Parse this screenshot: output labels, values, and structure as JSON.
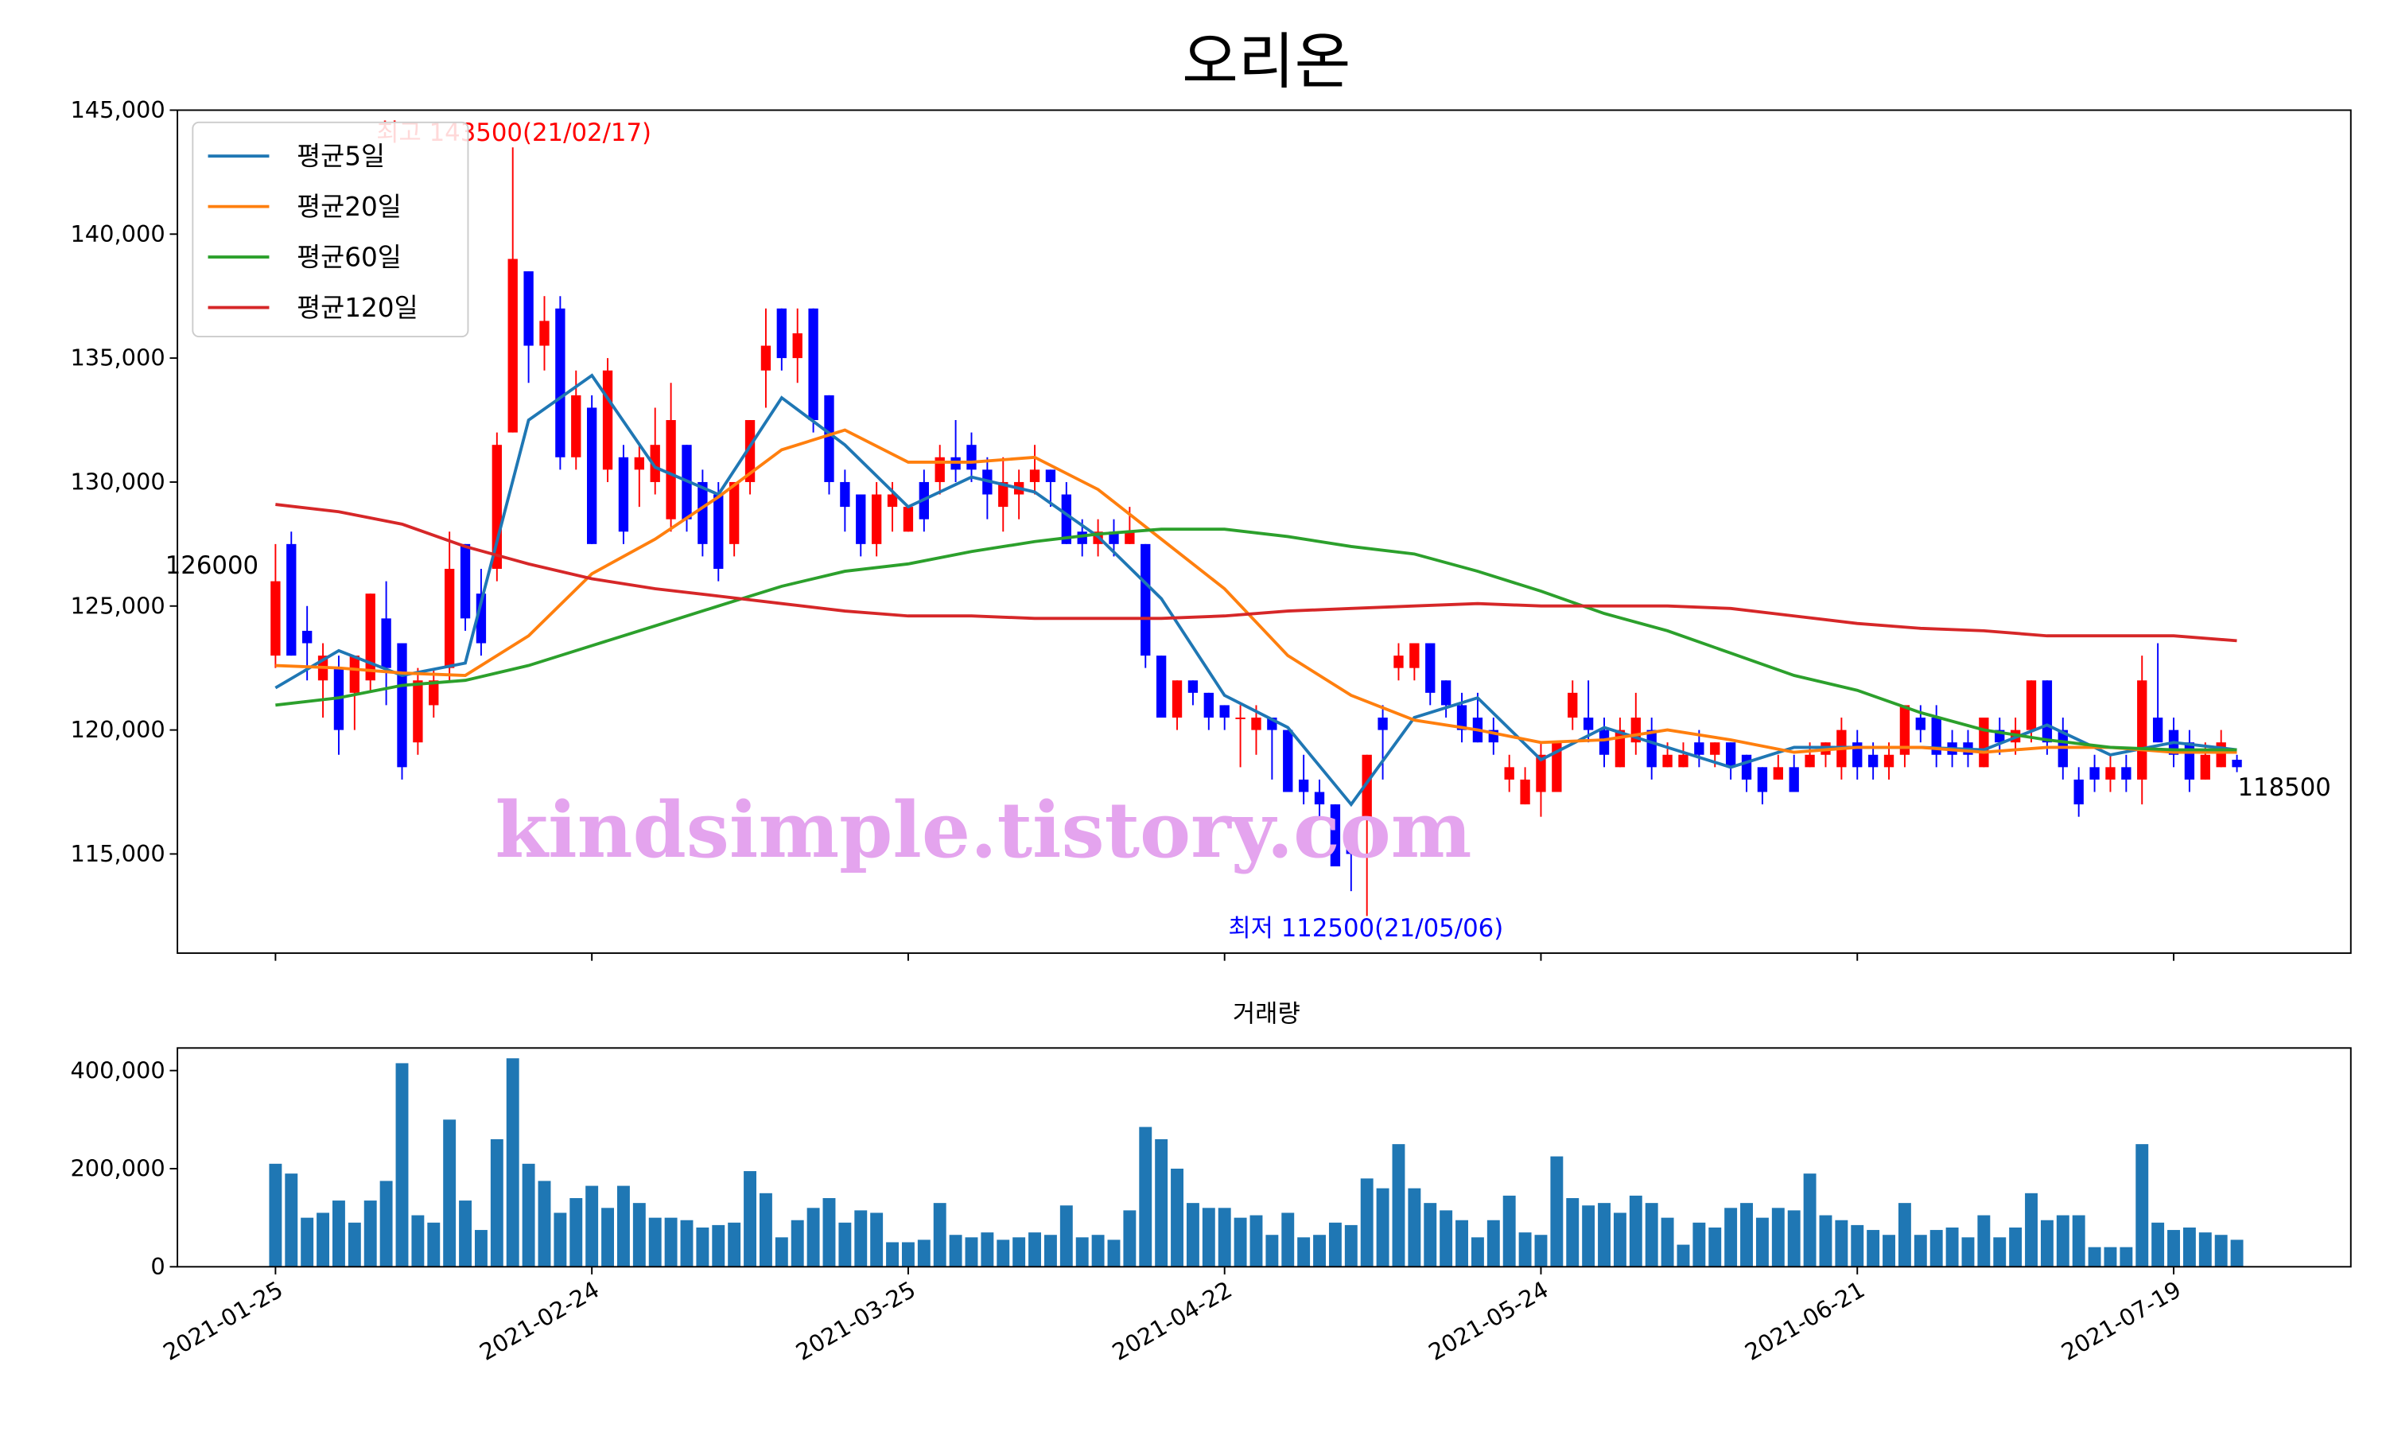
{
  "chart_data": [
    {
      "type": "candlestick",
      "title": "오리온",
      "up_color": "red",
      "down_color": "blue",
      "xlim": [
        -6.2,
        131.2
      ],
      "xticks": [
        0,
        20,
        40,
        60,
        80,
        100,
        120
      ],
      "ylim": [
        111000,
        145000
      ],
      "yticks": [
        {
          "value": 115000,
          "label": "115,000"
        },
        {
          "value": 120000,
          "label": "120,000"
        },
        {
          "value": 125000,
          "label": "125,000"
        },
        {
          "value": 130000,
          "label": "130,000"
        },
        {
          "value": 135000,
          "label": "135,000"
        },
        {
          "value": 140000,
          "label": "140,000"
        },
        {
          "value": 145000,
          "label": "145,000"
        }
      ],
      "open": [
        123000,
        127500,
        124000,
        122000,
        122500,
        121500,
        122000,
        124500,
        123500,
        119500,
        121000,
        122500,
        127500,
        125500,
        126500,
        132000,
        138500,
        135500,
        137000,
        131000,
        133000,
        130500,
        131000,
        130500,
        130000,
        128500,
        131500,
        130000,
        129500,
        127500,
        130000,
        134500,
        137000,
        135000,
        137000,
        133500,
        130000,
        129500,
        127500,
        129000,
        128000,
        130000,
        130000,
        131000,
        131500,
        130500,
        129000,
        129500,
        130000,
        130500,
        129500,
        128000,
        127500,
        128000,
        127500,
        127500,
        123000,
        120500,
        122000,
        121500,
        121000,
        120500,
        120000,
        120500,
        120000,
        118000,
        117500,
        117000,
        115500,
        116500,
        120500,
        122500,
        122500,
        123500,
        122000,
        121000,
        120500,
        120000,
        118000,
        117000,
        117500,
        117500,
        120500,
        120500,
        120000,
        118500,
        119500,
        120000,
        118500,
        118500,
        119500,
        119000,
        119500,
        119000,
        118500,
        118000,
        118500,
        118500,
        119000,
        118500,
        119500,
        119000,
        118500,
        119000,
        120500,
        120500,
        119500,
        119500,
        118500,
        120000,
        119500,
        120000,
        122000,
        120000,
        118000,
        118500,
        118000,
        118500,
        118000,
        120500,
        120000,
        119500,
        118000,
        118500,
        118800
      ],
      "high": [
        127500,
        128000,
        125000,
        123500,
        123000,
        123000,
        125500,
        126000,
        123500,
        122500,
        122500,
        128000,
        127500,
        126500,
        132000,
        143500,
        138500,
        137500,
        137500,
        134500,
        133500,
        135000,
        131500,
        131500,
        133000,
        134000,
        131500,
        130500,
        130000,
        130000,
        132500,
        137000,
        137000,
        137000,
        137000,
        133500,
        130500,
        129500,
        130000,
        130000,
        129000,
        130500,
        131500,
        132500,
        132000,
        131000,
        131000,
        130500,
        131500,
        130500,
        130000,
        128500,
        128500,
        128500,
        129000,
        127500,
        123000,
        122000,
        122000,
        121500,
        121000,
        121000,
        121000,
        120500,
        120000,
        119000,
        118000,
        117000,
        115500,
        119000,
        121000,
        123500,
        123500,
        123500,
        122000,
        121500,
        121500,
        120500,
        119000,
        118500,
        119500,
        119500,
        122000,
        122000,
        120500,
        120500,
        121500,
        120500,
        119500,
        119500,
        120000,
        119500,
        119500,
        119000,
        118500,
        119000,
        119000,
        119500,
        119500,
        120500,
        120000,
        119500,
        119500,
        121000,
        121000,
        121000,
        120000,
        120000,
        120500,
        120500,
        120500,
        122000,
        122000,
        120500,
        118500,
        119000,
        119000,
        119000,
        123000,
        123500,
        120500,
        120000,
        119500,
        120000,
        119000
      ],
      "low": [
        122500,
        123000,
        122000,
        120500,
        119000,
        120000,
        121500,
        121000,
        118000,
        119000,
        120500,
        122000,
        124000,
        123000,
        126000,
        132000,
        134000,
        134500,
        130500,
        130500,
        127500,
        130000,
        127500,
        129000,
        129500,
        128000,
        128000,
        127000,
        126000,
        127000,
        129500,
        133000,
        134500,
        134000,
        132000,
        129500,
        128000,
        127000,
        127000,
        128000,
        128000,
        128000,
        129500,
        130000,
        130000,
        128500,
        128000,
        128500,
        129500,
        129000,
        127500,
        127000,
        127000,
        127000,
        127500,
        122500,
        120500,
        120000,
        121000,
        120000,
        120000,
        118500,
        119000,
        118000,
        117500,
        117000,
        116500,
        114500,
        113500,
        112500,
        118000,
        122000,
        122000,
        121000,
        120500,
        119500,
        119500,
        119000,
        117500,
        117000,
        116500,
        117500,
        120000,
        119500,
        118500,
        118500,
        119000,
        118000,
        118500,
        118500,
        118500,
        118500,
        118000,
        117500,
        117000,
        118000,
        117500,
        118500,
        118500,
        118000,
        118000,
        118000,
        118000,
        118500,
        119500,
        118500,
        118500,
        118500,
        118500,
        119000,
        119000,
        119500,
        119000,
        118000,
        116500,
        117500,
        117500,
        117500,
        117000,
        119500,
        118500,
        117500,
        118000,
        118500,
        118300
      ],
      "close": [
        126000,
        123000,
        123500,
        123000,
        120000,
        123000,
        125500,
        122500,
        118500,
        122000,
        122000,
        126500,
        124500,
        123500,
        131500,
        139000,
        135500,
        136500,
        131000,
        133500,
        127500,
        134500,
        128000,
        131000,
        131500,
        132500,
        128500,
        127500,
        126500,
        130000,
        132500,
        135500,
        135000,
        136000,
        132500,
        130000,
        129000,
        127500,
        129500,
        129500,
        129000,
        128500,
        131000,
        130500,
        130500,
        129500,
        130000,
        130000,
        130500,
        130000,
        127500,
        127500,
        128000,
        127500,
        128000,
        123000,
        120500,
        122000,
        121500,
        120500,
        120500,
        120500,
        120500,
        120000,
        117500,
        117500,
        117000,
        114500,
        115000,
        119000,
        120000,
        123000,
        123500,
        121500,
        121000,
        120000,
        119500,
        119500,
        118500,
        118000,
        119000,
        119500,
        121500,
        120000,
        119000,
        120000,
        120500,
        118500,
        119000,
        119000,
        119000,
        119500,
        118500,
        118000,
        117500,
        118500,
        117500,
        119000,
        119500,
        120000,
        118500,
        118500,
        119000,
        121000,
        120000,
        119000,
        119000,
        119000,
        120500,
        119500,
        120000,
        122000,
        119500,
        118500,
        117000,
        118000,
        118500,
        118000,
        122000,
        119500,
        119000,
        118000,
        119000,
        119500,
        118500
      ],
      "series": [
        {
          "name": "평균5일",
          "color": "#1f77b4",
          "x": [
            0,
            4,
            8,
            12,
            16,
            20,
            24,
            28,
            32,
            36,
            40,
            44,
            48,
            52,
            56,
            60,
            64,
            68,
            72,
            76,
            80,
            84,
            88,
            92,
            96,
            100,
            104,
            108,
            112,
            116,
            120,
            124
          ],
          "values": [
            121700,
            123200,
            122200,
            122700,
            132500,
            134300,
            130600,
            129500,
            133400,
            131500,
            129000,
            130200,
            129600,
            127800,
            125300,
            121400,
            120100,
            117000,
            120500,
            121300,
            118800,
            120100,
            119300,
            118500,
            119300,
            119300,
            119300,
            119200,
            120200,
            119000,
            119500,
            119200
          ]
        },
        {
          "name": "평균20일",
          "color": "#ff7f0e",
          "x": [
            0,
            4,
            8,
            12,
            16,
            20,
            24,
            28,
            32,
            36,
            40,
            44,
            48,
            52,
            56,
            60,
            64,
            68,
            72,
            76,
            80,
            84,
            88,
            92,
            96,
            100,
            104,
            108,
            112,
            116,
            120,
            124
          ],
          "values": [
            122600,
            122500,
            122300,
            122200,
            123800,
            126300,
            127700,
            129400,
            131300,
            132100,
            130800,
            130800,
            131000,
            129700,
            127700,
            125700,
            123000,
            121400,
            120400,
            120000,
            119500,
            119600,
            120000,
            119600,
            119100,
            119300,
            119300,
            119100,
            119300,
            119300,
            119100,
            119100
          ]
        },
        {
          "name": "평균60일",
          "color": "#2ca02c",
          "x": [
            0,
            4,
            8,
            12,
            16,
            20,
            24,
            28,
            32,
            36,
            40,
            44,
            48,
            52,
            56,
            60,
            64,
            68,
            72,
            76,
            80,
            84,
            88,
            92,
            96,
            100,
            104,
            108,
            112,
            116,
            120,
            124
          ],
          "values": [
            121000,
            121300,
            121800,
            122000,
            122600,
            123400,
            124200,
            125000,
            125800,
            126400,
            126700,
            127200,
            127600,
            127900,
            128100,
            128100,
            127800,
            127400,
            127100,
            126400,
            125600,
            124700,
            124000,
            123100,
            122200,
            121600,
            120700,
            120000,
            119600,
            119300,
            119200,
            119200
          ]
        },
        {
          "name": "평균120일",
          "color": "#d62728",
          "x": [
            0,
            4,
            8,
            12,
            16,
            20,
            24,
            28,
            32,
            36,
            40,
            44,
            48,
            52,
            56,
            60,
            64,
            68,
            72,
            76,
            80,
            84,
            88,
            92,
            96,
            100,
            104,
            108,
            112,
            116,
            120,
            124
          ],
          "values": [
            129100,
            128800,
            128300,
            127400,
            126700,
            126100,
            125700,
            125400,
            125100,
            124800,
            124600,
            124600,
            124500,
            124500,
            124500,
            124600,
            124800,
            124900,
            125000,
            125100,
            125000,
            125000,
            125000,
            124900,
            124600,
            124300,
            124100,
            124000,
            123800,
            123800,
            123800,
            123600
          ]
        }
      ],
      "legend": "upper left",
      "annotations": [
        {
          "text": "최고 143500(21/02/17)",
          "color": "red"
        },
        {
          "text": "최저 112500(21/05/06)",
          "color": "blue"
        },
        {
          "text": "126000",
          "color": "#000000"
        },
        {
          "text": "118500",
          "color": "#000000"
        }
      ],
      "watermark": "kindsimple.tistory.com"
    },
    {
      "type": "bar",
      "title": "거래량",
      "color": "#1f77b4",
      "xlim": [
        -6.2,
        131.2
      ],
      "ylim": [
        0,
        446000
      ],
      "yticks": [
        0,
        {
          "value": 200000,
          "label": "200,000"
        },
        {
          "value": 400000,
          "label": "400,000"
        }
      ],
      "categories": [
        "2021-01-25",
        null,
        null,
        null,
        null,
        null,
        null,
        null,
        null,
        null,
        null,
        null,
        null,
        null,
        null,
        null,
        null,
        null,
        null,
        null,
        "2021-02-24",
        null,
        null,
        null,
        null,
        null,
        null,
        null,
        null,
        null,
        null,
        null,
        null,
        null,
        null,
        null,
        null,
        null,
        null,
        null,
        "2021-03-25",
        null,
        null,
        null,
        null,
        null,
        null,
        null,
        null,
        null,
        null,
        null,
        null,
        null,
        null,
        null,
        null,
        null,
        null,
        null,
        "2021-04-22",
        null,
        null,
        null,
        null,
        null,
        null,
        null,
        null,
        null,
        null,
        null,
        null,
        null,
        null,
        null,
        null,
        null,
        null,
        null,
        "2021-05-24",
        null,
        null,
        null,
        null,
        null,
        null,
        null,
        null,
        null,
        null,
        null,
        null,
        null,
        null,
        null,
        null,
        null,
        null,
        null,
        "2021-06-21",
        null,
        null,
        null,
        null,
        null,
        null,
        null,
        null,
        null,
        null,
        null,
        null,
        null,
        null,
        null,
        null,
        null,
        null,
        null,
        "2021-07-19",
        null,
        null,
        null,
        null
      ],
      "values": [
        210000,
        190000,
        100000,
        110000,
        135000,
        90000,
        135000,
        175000,
        415000,
        105000,
        90000,
        300000,
        135000,
        75000,
        260000,
        425000,
        210000,
        175000,
        110000,
        140000,
        165000,
        120000,
        165000,
        130000,
        100000,
        100000,
        95000,
        80000,
        85000,
        90000,
        195000,
        150000,
        60000,
        95000,
        120000,
        140000,
        90000,
        115000,
        110000,
        50000,
        50000,
        55000,
        130000,
        65000,
        60000,
        70000,
        55000,
        60000,
        70000,
        65000,
        125000,
        60000,
        65000,
        55000,
        115000,
        285000,
        260000,
        200000,
        130000,
        120000,
        120000,
        100000,
        105000,
        65000,
        110000,
        60000,
        65000,
        90000,
        85000,
        180000,
        160000,
        250000,
        160000,
        130000,
        115000,
        95000,
        60000,
        95000,
        145000,
        70000,
        65000,
        225000,
        140000,
        125000,
        130000,
        110000,
        145000,
        130000,
        100000,
        45000,
        90000,
        80000,
        120000,
        130000,
        100000,
        120000,
        115000,
        190000,
        105000,
        95000,
        85000,
        75000,
        65000,
        130000,
        65000,
        75000,
        80000,
        60000,
        105000,
        60000,
        80000,
        150000,
        95000,
        105000,
        105000,
        40000,
        40000,
        40000,
        250000,
        90000,
        75000,
        80000,
        70000,
        65000,
        55000
      ]
    }
  ]
}
